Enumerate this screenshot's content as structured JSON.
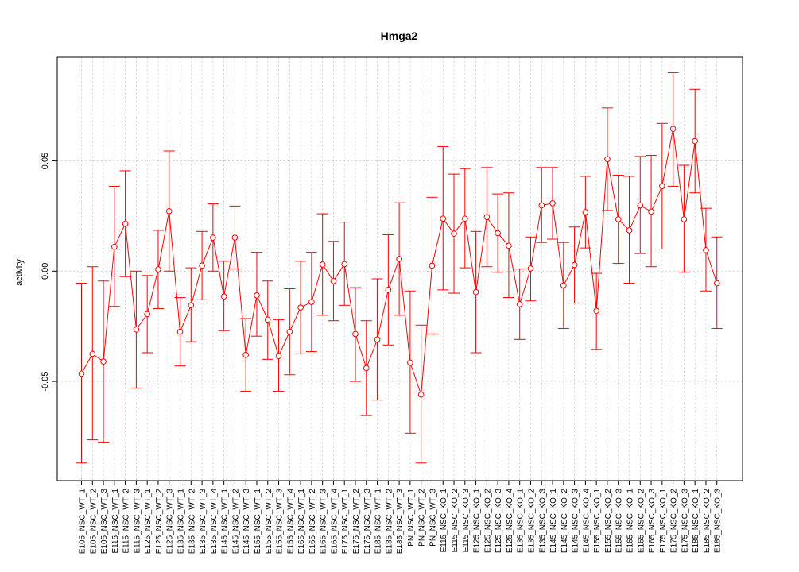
{
  "chart_data": {
    "type": "line",
    "title": "Hmga2",
    "xlabel": "",
    "ylabel": "activity",
    "ylim": [
      -0.095,
      0.097
    ],
    "yticks": [
      -0.05,
      0.0,
      0.05
    ],
    "ytick_labels": [
      "-0.05",
      "0.00",
      "0.05"
    ],
    "grid": true,
    "line_color": "#ff0000",
    "grid_color": "#c8c8c8",
    "categories": [
      "E105_NSC_WT_1",
      "E105_NSC_WT_2",
      "E105_NSC_WT_3",
      "E115_NSC_WT_1",
      "E115_NSC_WT_2",
      "E115_NSC_WT_3",
      "E125_NSC_WT_1",
      "E125_NSC_WT_2",
      "E125_NSC_WT_3",
      "E135_NSC_WT_1",
      "E135_NSC_WT_2",
      "E135_NSC_WT_3",
      "E135_NSC_WT_4",
      "E145_NSC_WT_1",
      "E145_NSC_WT_2",
      "E145_NSC_WT_3",
      "E155_NSC_WT_1",
      "E155_NSC_WT_2",
      "E155_NSC_WT_3",
      "E155_NSC_WT_4",
      "E165_NSC_WT_1",
      "E165_NSC_WT_2",
      "E165_NSC_WT_3",
      "E165_NSC_WT_4",
      "E175_NSC_WT_1",
      "E175_NSC_WT_2",
      "E175_NSC_WT_3",
      "E185_NSC_WT_1",
      "E185_NSC_WT_2",
      "E185_NSC_WT_3",
      "PN_NSC_WT_1",
      "PN_NSC_WT_2",
      "PN_NSC_WT_3",
      "E115_NSC_KO_1",
      "E115_NSC_KO_2",
      "E115_NSC_KO_3",
      "E125_NSC_KO_1",
      "E125_NSC_KO_2",
      "E125_NSC_KO_3",
      "E125_NSC_KO_4",
      "E135_NSC_KO_1",
      "E135_NSC_KO_2",
      "E135_NSC_KO_3",
      "E145_NSC_KO_1",
      "E145_NSC_KO_2",
      "E145_NSC_KO_3",
      "E145_NSC_KO_4",
      "E155_NSC_KO_1",
      "E155_NSC_KO_2",
      "E155_NSC_KO_3",
      "E165_NSC_KO_1",
      "E165_NSC_KO_2",
      "E165_NSC_KO_3",
      "E175_NSC_KO_1",
      "E175_NSC_KO_2",
      "E175_NSC_KO_3",
      "E185_NSC_KO_1",
      "E185_NSC_KO_2",
      "E185_NSC_KO_3"
    ],
    "values": [
      -0.0465,
      -0.0375,
      -0.041,
      0.011,
      0.0215,
      -0.0265,
      -0.0195,
      0.0008,
      0.0272,
      -0.0275,
      -0.0155,
      0.0025,
      0.0152,
      -0.0115,
      0.0152,
      -0.038,
      -0.011,
      -0.022,
      -0.0385,
      -0.0275,
      -0.0165,
      -0.014,
      0.003,
      -0.0045,
      0.0032,
      -0.0285,
      -0.044,
      -0.031,
      -0.0085,
      0.0055,
      -0.0415,
      -0.056,
      0.0025,
      0.0238,
      0.017,
      0.0238,
      -0.0095,
      0.0245,
      0.0172,
      0.0115,
      -0.015,
      0.0012,
      0.0298,
      0.0308,
      -0.0065,
      0.0028,
      0.0268,
      -0.018,
      0.0508,
      0.0235,
      0.0185,
      0.0298,
      0.027,
      0.0385,
      0.0645,
      0.0235,
      0.059,
      0.0095,
      -0.0055
    ],
    "err_low": [
      -0.087,
      -0.0765,
      -0.0775,
      -0.016,
      -0.0025,
      -0.053,
      -0.037,
      -0.017,
      0.0,
      -0.043,
      -0.032,
      -0.013,
      0.0,
      -0.027,
      0.001,
      -0.0545,
      -0.0295,
      -0.04,
      -0.0545,
      -0.047,
      -0.0375,
      -0.0365,
      -0.02,
      -0.0225,
      -0.0155,
      -0.05,
      -0.0655,
      -0.0585,
      -0.0335,
      -0.02,
      -0.0735,
      -0.087,
      -0.0285,
      -0.0085,
      -0.01,
      0.0015,
      -0.037,
      0.002,
      -0.0005,
      -0.012,
      -0.031,
      -0.0135,
      0.013,
      0.0145,
      -0.026,
      -0.0145,
      0.0105,
      -0.0355,
      0.0275,
      0.0035,
      -0.0055,
      0.008,
      0.002,
      0.01,
      0.0385,
      -0.0005,
      0.0355,
      -0.009,
      -0.026
    ],
    "err_high": [
      -0.0055,
      0.002,
      -0.0045,
      0.0385,
      0.0455,
      0.0,
      -0.002,
      0.0185,
      0.0545,
      -0.012,
      0.0015,
      0.018,
      0.0305,
      0.0045,
      0.0295,
      -0.0215,
      0.0085,
      -0.0045,
      -0.022,
      -0.008,
      0.0045,
      0.0085,
      0.026,
      0.0135,
      0.0222,
      -0.0075,
      -0.0225,
      -0.0035,
      0.0165,
      0.031,
      -0.009,
      -0.0245,
      0.0335,
      0.0565,
      0.044,
      0.0465,
      0.018,
      0.047,
      0.035,
      0.0355,
      0.001,
      0.0155,
      0.047,
      0.047,
      0.013,
      0.02,
      0.043,
      -0.001,
      0.074,
      0.0435,
      0.043,
      0.052,
      0.0525,
      0.067,
      0.09,
      0.048,
      0.0825,
      0.0285,
      0.0155
    ]
  }
}
